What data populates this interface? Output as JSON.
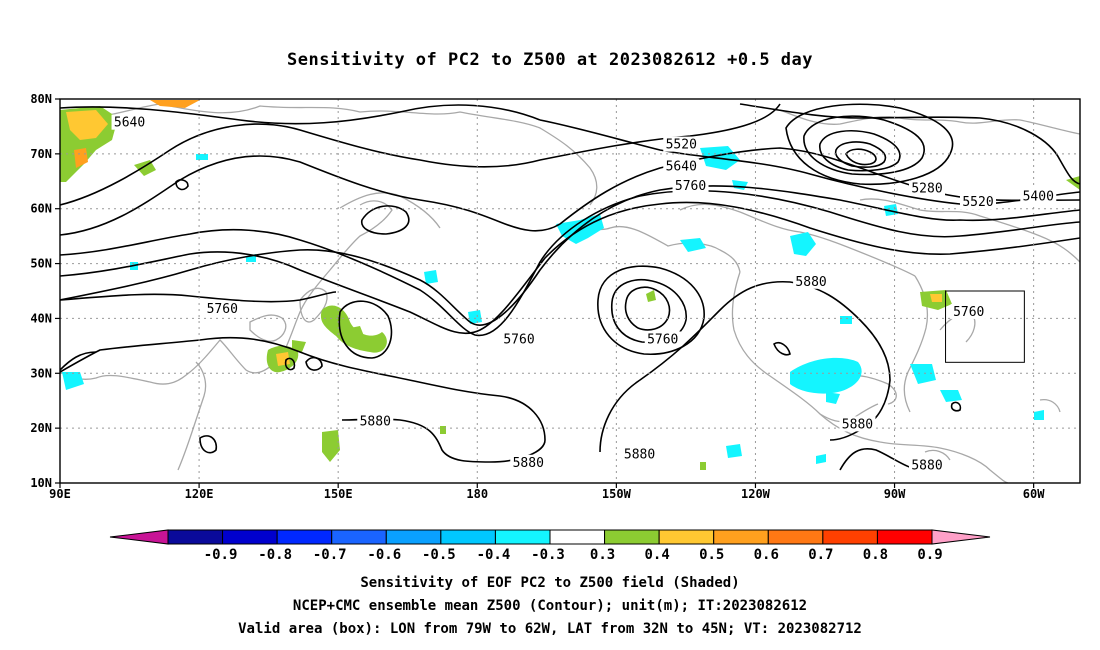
{
  "title": "Sensitivity of PC2 to Z500 at 2023082612 +0.5 day",
  "map": {
    "lon_range": [
      90,
      310
    ],
    "lat_range": [
      10,
      80
    ],
    "lat_ticks": [
      {
        "lat": 80,
        "label": "80N"
      },
      {
        "lat": 70,
        "label": "70N"
      },
      {
        "lat": 60,
        "label": "60N"
      },
      {
        "lat": 50,
        "label": "50N"
      },
      {
        "lat": 40,
        "label": "40N"
      },
      {
        "lat": 30,
        "label": "30N"
      },
      {
        "lat": 20,
        "label": "20N"
      },
      {
        "lat": 10,
        "label": "10N"
      }
    ],
    "lon_ticks": [
      {
        "lon": 90,
        "label": "90E"
      },
      {
        "lon": 120,
        "label": "120E"
      },
      {
        "lon": 150,
        "label": "150E"
      },
      {
        "lon": 180,
        "label": "180"
      },
      {
        "lon": 210,
        "label": "150W"
      },
      {
        "lon": 240,
        "label": "120W"
      },
      {
        "lon": 270,
        "label": "90W"
      },
      {
        "lon": 300,
        "label": "60W"
      }
    ],
    "valid_box": {
      "lon_min": 281,
      "lon_max": 298,
      "lat_min": 32,
      "lat_max": 45
    },
    "contour_labels": [
      {
        "text": "5640",
        "lon": 105,
        "lat": 75.5
      },
      {
        "text": "5520",
        "lon": 224,
        "lat": 71.5
      },
      {
        "text": "5640",
        "lon": 224,
        "lat": 67.5
      },
      {
        "text": "5760",
        "lon": 226,
        "lat": 64
      },
      {
        "text": "5280",
        "lon": 277,
        "lat": 63.5
      },
      {
        "text": "5400",
        "lon": 301,
        "lat": 62
      },
      {
        "text": "5520",
        "lon": 288,
        "lat": 61
      },
      {
        "text": "5760",
        "lon": 125,
        "lat": 41.5
      },
      {
        "text": "5760",
        "lon": 189,
        "lat": 36
      },
      {
        "text": "5760",
        "lon": 220,
        "lat": 36
      },
      {
        "text": "5880",
        "lon": 252,
        "lat": 46.5
      },
      {
        "text": "5760",
        "lon": 286,
        "lat": 41
      },
      {
        "text": "5880",
        "lon": 158,
        "lat": 21
      },
      {
        "text": "5880",
        "lon": 191,
        "lat": 13.5
      },
      {
        "text": "5880",
        "lon": 215,
        "lat": 15
      },
      {
        "text": "5880",
        "lon": 262,
        "lat": 20.5
      },
      {
        "text": "5880",
        "lon": 277,
        "lat": 13
      }
    ]
  },
  "colorbar": {
    "colors": [
      "#0a0a9a",
      "#0000cd",
      "#0028ff",
      "#1a64ff",
      "#0aa0ff",
      "#00c8ff",
      "#14f5ff",
      "#ffffff",
      "#8ccc32",
      "#ffc832",
      "#ffa01e",
      "#ff7814",
      "#ff4000",
      "#ff0000"
    ],
    "under_color": "#c81496",
    "over_color": "#ffa0c8",
    "labels": [
      "-0.9",
      "-0.8",
      "-0.7",
      "-0.6",
      "-0.5",
      "-0.4",
      "-0.3",
      "0.3",
      "0.4",
      "0.5",
      "0.6",
      "0.7",
      "0.8",
      "0.9"
    ]
  },
  "captions": {
    "line1": "Sensitivity of EOF PC2 to Z500 field (Shaded)",
    "line2": "NCEP+CMC ensemble mean Z500 (Contour); unit(m); IT:2023082612",
    "line3": "Valid area (box): LON from 79W to 62W, LAT from 32N to 45N; VT: 2023082712"
  }
}
